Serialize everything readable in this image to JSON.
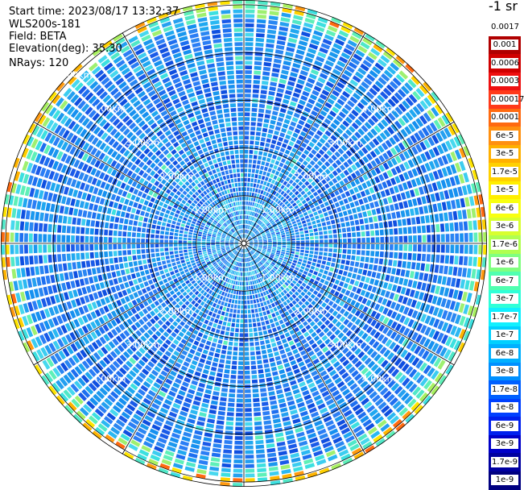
{
  "header": {
    "start_time": "Start time: 2023/08/17 13:32:37",
    "instrument": "WLS200s-181",
    "field": "Field: BETA",
    "elevation": "Elevation(deg): 35.30",
    "nrays": "NRays: 120"
  },
  "colorbar": {
    "unit": "-1 sr",
    "labels": [
      "0.0017",
      "0.001",
      "0.0006",
      "0.0003",
      "0.00017",
      "0.0001",
      "6e-5",
      "3e-5",
      "1.7e-5",
      "1e-5",
      "6e-6",
      "3e-6",
      "1.7e-6",
      "1e-6",
      "6e-7",
      "3e-7",
      "1.7e-7",
      "1e-7",
      "6e-8",
      "3e-8",
      "1.7e-8",
      "1e-8",
      "6e-9",
      "3e-9",
      "1.7e-9",
      "1e-9"
    ],
    "colors": [
      "#ffffff",
      "#b00000",
      "#d00000",
      "#ee1010",
      "#ff3a1a",
      "#ff6a10",
      "#ff9010",
      "#ffb000",
      "#ffd000",
      "#ffee00",
      "#f8ff10",
      "#d8ff30",
      "#b0ff50",
      "#80ff80",
      "#50ffb0",
      "#30ffd8",
      "#10f0ff",
      "#00d0ff",
      "#00b0ff",
      "#0090ff",
      "#0060ff",
      "#0040ff",
      "#0020ee",
      "#0000c8",
      "#0000a0",
      "#000080"
    ]
  },
  "rings": [
    {
      "label": "1.00km",
      "km": 1
    },
    {
      "label": "2.00km",
      "km": 2
    },
    {
      "label": "3.00km",
      "km": 3
    },
    {
      "label": "4.00km",
      "km": 4
    },
    {
      "label": "5.00km",
      "km": 5
    }
  ],
  "map": {
    "max_range_km": 5.1,
    "nrays": 120,
    "range_gates": 52
  }
}
